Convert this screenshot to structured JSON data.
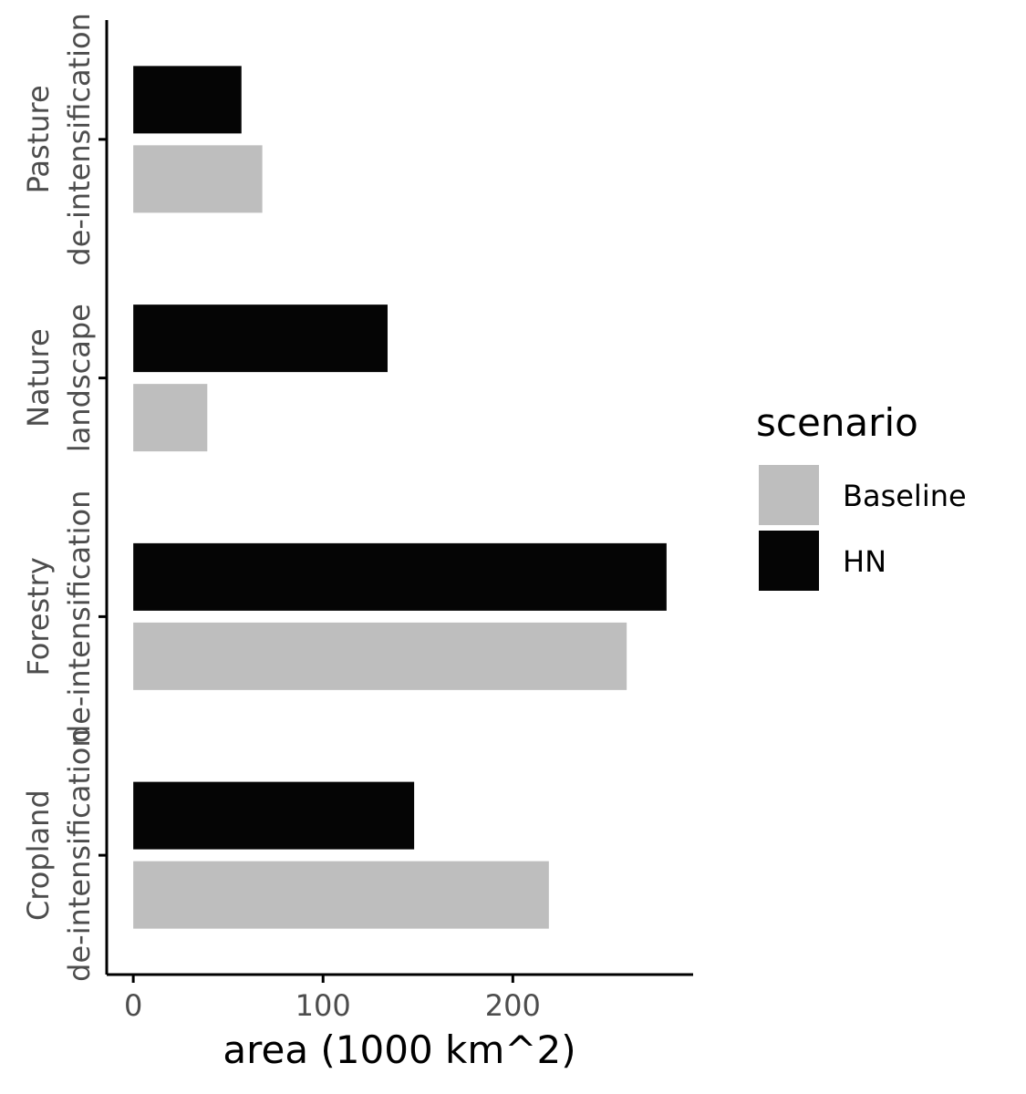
{
  "chart_data": {
    "type": "bar",
    "orientation": "horizontal",
    "categories": [
      "Cropland\nde-intensification",
      "Forestry\nde-intensification",
      "Nature\nlandscape",
      "Pasture\nde-intensification"
    ],
    "series": [
      {
        "name": "Baseline",
        "color": "#bebebe",
        "values": [
          219,
          260,
          39,
          68
        ]
      },
      {
        "name": "HN",
        "color": "#050505",
        "values": [
          148,
          281,
          134,
          57
        ]
      }
    ],
    "xlabel": "area (1000 km^2)",
    "ylabel": "",
    "title": "",
    "xlim": [
      -14,
      295
    ],
    "xticks": [
      0,
      100,
      200
    ],
    "grid": false,
    "legend": {
      "title": "scenario",
      "placement": "right",
      "entries": [
        "Baseline",
        "HN"
      ]
    }
  }
}
